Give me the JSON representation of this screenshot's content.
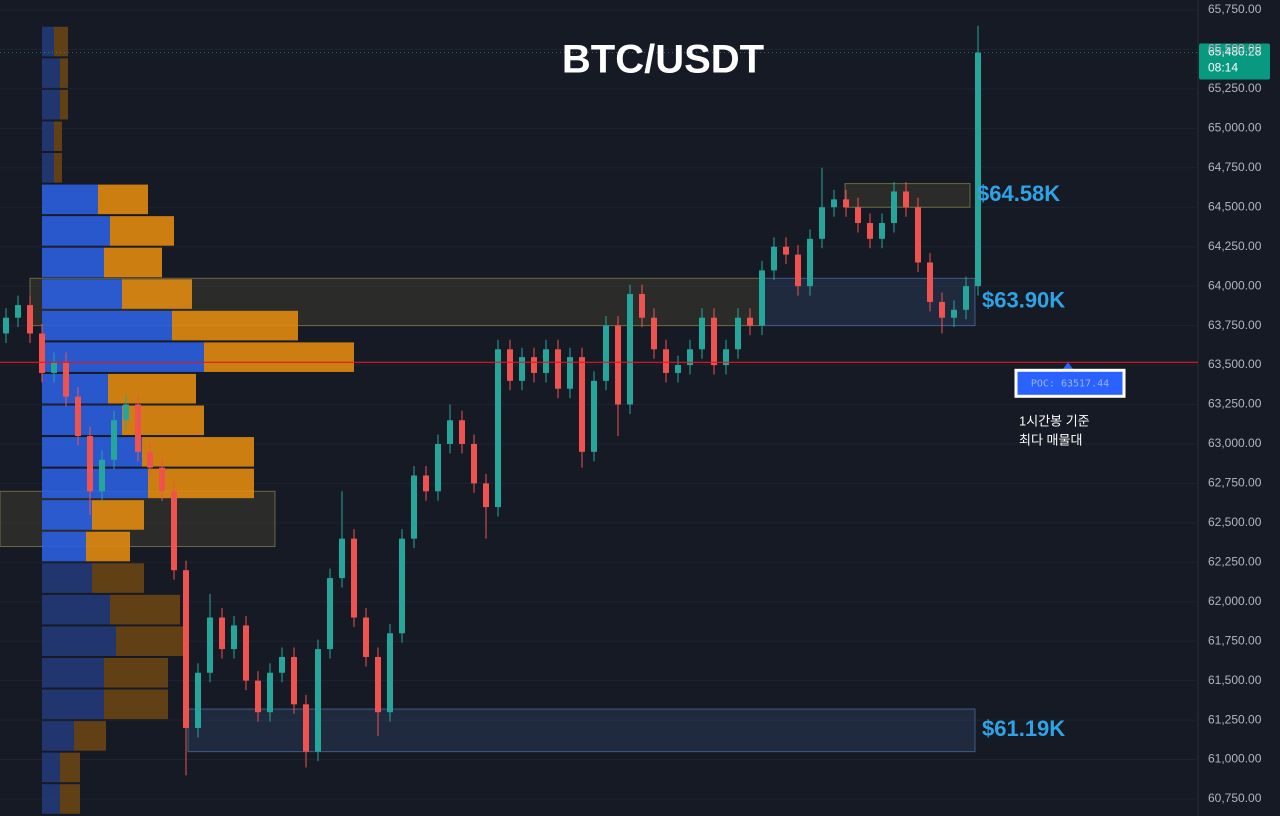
{
  "chart_data": {
    "type": "candlestick",
    "title": "BTC/USDT",
    "up_color": "#26a69a",
    "down_color": "#ef5350",
    "ylim": [
      60750,
      65750
    ],
    "yticks": [
      {
        "value": 65750,
        "label": "65,750.00"
      },
      {
        "value": 65500,
        "label": "65,500.00"
      },
      {
        "value": 65250,
        "label": "65,250.00"
      },
      {
        "value": 65000,
        "label": "65,000.00"
      },
      {
        "value": 64750,
        "label": "64,750.00"
      },
      {
        "value": 64500,
        "label": "64,500.00"
      },
      {
        "value": 64250,
        "label": "64,250.00"
      },
      {
        "value": 64000,
        "label": "64,000.00"
      },
      {
        "value": 63750,
        "label": "63,750.00"
      },
      {
        "value": 63500,
        "label": "63,500.00"
      },
      {
        "value": 63250,
        "label": "63,250.00"
      },
      {
        "value": 63000,
        "label": "63,000.00"
      },
      {
        "value": 62750,
        "label": "62,750.00"
      },
      {
        "value": 62500,
        "label": "62,500.00"
      },
      {
        "value": 62250,
        "label": "62,250.00"
      },
      {
        "value": 62000,
        "label": "62,000.00"
      },
      {
        "value": 61750,
        "label": "61,750.00"
      },
      {
        "value": 61500,
        "label": "61,500.00"
      },
      {
        "value": 61250,
        "label": "61,250.00"
      },
      {
        "value": 61000,
        "label": "61,000.00"
      },
      {
        "value": 60750,
        "label": "60,750.00"
      }
    ],
    "grid": true,
    "candles": [
      [
        63700,
        63860,
        63640,
        63800
      ],
      [
        63800,
        63940,
        63740,
        63880
      ],
      [
        63880,
        63940,
        63640,
        63700
      ],
      [
        63700,
        63760,
        63390,
        63450
      ],
      [
        63450,
        63580,
        63390,
        63520
      ],
      [
        63520,
        63580,
        63240,
        63300
      ],
      [
        63300,
        63360,
        62990,
        63050
      ],
      [
        63050,
        63110,
        62550,
        62700
      ],
      [
        62700,
        62960,
        62640,
        62900
      ],
      [
        62900,
        63210,
        62840,
        63150
      ],
      [
        63150,
        63310,
        63090,
        63250
      ],
      [
        63250,
        63310,
        62890,
        62950
      ],
      [
        62950,
        63010,
        62790,
        62850
      ],
      [
        62850,
        62910,
        62640,
        62700
      ],
      [
        62700,
        62760,
        62140,
        62200
      ],
      [
        62200,
        62260,
        60900,
        61200
      ],
      [
        61200,
        61610,
        61140,
        61550
      ],
      [
        61550,
        62050,
        61490,
        61900
      ],
      [
        61900,
        61960,
        61640,
        61700
      ],
      [
        61700,
        61910,
        61640,
        61850
      ],
      [
        61850,
        61910,
        61440,
        61500
      ],
      [
        61500,
        61560,
        61240,
        61300
      ],
      [
        61300,
        61610,
        61240,
        61550
      ],
      [
        61550,
        61710,
        61490,
        61650
      ],
      [
        61650,
        61710,
        61290,
        61350
      ],
      [
        61350,
        61410,
        60950,
        61050
      ],
      [
        61050,
        61760,
        60990,
        61700
      ],
      [
        61700,
        62210,
        61640,
        62150
      ],
      [
        62150,
        62700,
        62090,
        62400
      ],
      [
        62400,
        62460,
        61840,
        61900
      ],
      [
        61900,
        61960,
        61590,
        61650
      ],
      [
        61650,
        61710,
        61150,
        61300
      ],
      [
        61300,
        61860,
        61240,
        61800
      ],
      [
        61800,
        62460,
        61740,
        62400
      ],
      [
        62400,
        62860,
        62340,
        62800
      ],
      [
        62800,
        62860,
        62640,
        62700
      ],
      [
        62700,
        63060,
        62640,
        63000
      ],
      [
        63000,
        63250,
        62940,
        63150
      ],
      [
        63150,
        63210,
        62940,
        63000
      ],
      [
        63000,
        63060,
        62690,
        62750
      ],
      [
        62750,
        62810,
        62400,
        62600
      ],
      [
        62600,
        63660,
        62540,
        63600
      ],
      [
        63600,
        63660,
        63340,
        63400
      ],
      [
        63400,
        63610,
        63340,
        63550
      ],
      [
        63550,
        63610,
        63390,
        63450
      ],
      [
        63450,
        63660,
        63390,
        63600
      ],
      [
        63600,
        63660,
        63290,
        63350
      ],
      [
        63350,
        63610,
        63290,
        63550
      ],
      [
        63550,
        63610,
        62850,
        62950
      ],
      [
        62950,
        63460,
        62890,
        63400
      ],
      [
        63400,
        63810,
        63340,
        63750
      ],
      [
        63750,
        63810,
        63050,
        63250
      ],
      [
        63250,
        64010,
        63190,
        63950
      ],
      [
        63950,
        64010,
        63740,
        63800
      ],
      [
        63800,
        63860,
        63540,
        63600
      ],
      [
        63600,
        63660,
        63390,
        63450
      ],
      [
        63450,
        63560,
        63390,
        63500
      ],
      [
        63500,
        63660,
        63440,
        63600
      ],
      [
        63600,
        63860,
        63540,
        63800
      ],
      [
        63800,
        63860,
        63440,
        63500
      ],
      [
        63500,
        63660,
        63440,
        63600
      ],
      [
        63600,
        63860,
        63540,
        63800
      ],
      [
        63800,
        63860,
        63690,
        63750
      ],
      [
        63750,
        64160,
        63690,
        64100
      ],
      [
        64100,
        64310,
        64040,
        64250
      ],
      [
        64250,
        64310,
        64140,
        64200
      ],
      [
        64200,
        64260,
        63940,
        64000
      ],
      [
        64000,
        64360,
        63940,
        64300
      ],
      [
        64300,
        64750,
        64240,
        64500
      ],
      [
        64500,
        64610,
        64440,
        64550
      ],
      [
        64550,
        64610,
        64440,
        64500
      ],
      [
        64500,
        64560,
        64340,
        64400
      ],
      [
        64400,
        64460,
        64240,
        64300
      ],
      [
        64300,
        64460,
        64240,
        64400
      ],
      [
        64400,
        64660,
        64340,
        64600
      ],
      [
        64600,
        64660,
        64440,
        64500
      ],
      [
        64500,
        64560,
        64090,
        64150
      ],
      [
        64150,
        64210,
        63840,
        63900
      ],
      [
        63900,
        63960,
        63700,
        63800
      ],
      [
        63800,
        63910,
        63740,
        63850
      ],
      [
        63850,
        64060,
        63790,
        64000
      ],
      [
        64000,
        65650,
        63940,
        65480
      ]
    ],
    "profile": {
      "bin_edges": [
        65650,
        65450,
        65250,
        65050,
        64850,
        64650,
        64450,
        64250,
        64050,
        63850,
        63650,
        63450,
        63250,
        63050,
        62850,
        62650,
        62450,
        62250,
        62050,
        61850,
        61650,
        61450,
        61250,
        61050,
        60850,
        60650
      ],
      "buy": [
        12,
        18,
        18,
        12,
        12,
        56,
        68,
        62,
        80,
        130,
        162,
        66,
        80,
        100,
        106,
        50,
        44,
        50,
        68,
        74,
        62,
        62,
        32,
        18,
        18
      ],
      "sell": [
        14,
        8,
        8,
        8,
        8,
        50,
        64,
        58,
        70,
        126,
        150,
        88,
        82,
        112,
        106,
        52,
        44,
        52,
        70,
        70,
        64,
        64,
        32,
        20,
        20
      ],
      "value_area": [
        62250,
        64650
      ]
    },
    "zones": [
      {
        "low": 63750,
        "high": 64050,
        "kind": "supply"
      },
      {
        "low": 63750,
        "high": 64050,
        "kind": "demand",
        "label": "$63.90K"
      },
      {
        "low": 64500,
        "high": 64650,
        "kind": "supply",
        "label": "$64.58K"
      },
      {
        "low": 61050,
        "high": 61320,
        "kind": "demand",
        "label": "$61.19K"
      },
      {
        "low": 62350,
        "high": 62700,
        "kind": "supply"
      }
    ],
    "poc": {
      "value": 63517.44,
      "label": "POC: 63517.44"
    },
    "annotation": [
      "1시간봉 기준",
      "최다 매물대"
    ],
    "last_price": {
      "value": 65480.28,
      "label": "65,480.28",
      "countdown": "08:14"
    }
  }
}
